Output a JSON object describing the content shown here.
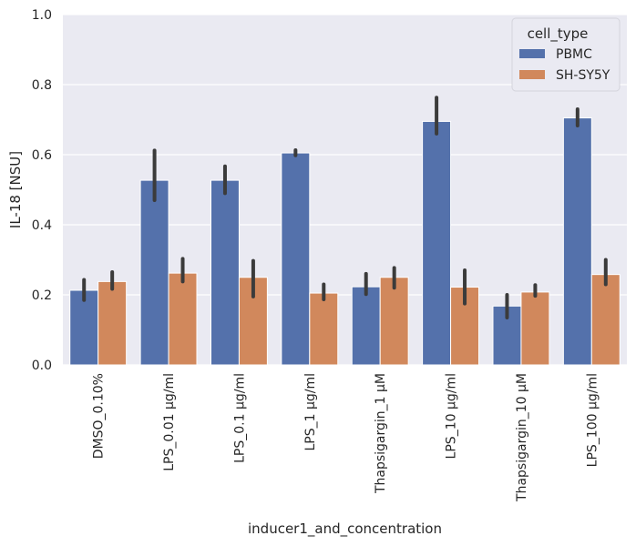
{
  "chart_data": {
    "type": "bar",
    "title": "",
    "xlabel": "inducer1_and_concentration",
    "ylabel": "IL-18 [NSU]",
    "ylim": [
      0,
      1.0
    ],
    "yticks": [
      "0.0",
      "0.2",
      "0.4",
      "0.6",
      "0.8",
      "1.0"
    ],
    "grid": true,
    "legend": {
      "title": "cell_type",
      "position": "top-right"
    },
    "categories": [
      "DMSO_0.10%",
      "LPS_0.01 μg/ml",
      "LPS_0.1 μg/ml",
      "LPS_1 μg/ml",
      "Thapsigargin_1 μM",
      "LPS_10 μg/ml",
      "Thapsigargin_10 μM",
      "LPS_100 μg/ml"
    ],
    "series": [
      {
        "name": "PBMC",
        "color": "#5471ab",
        "values": [
          0.213,
          0.527,
          0.527,
          0.605,
          0.223,
          0.695,
          0.168,
          0.705
        ],
        "error_low": [
          0.185,
          0.47,
          0.49,
          0.598,
          0.202,
          0.66,
          0.135,
          0.683
        ],
        "error_high": [
          0.243,
          0.612,
          0.567,
          0.613,
          0.26,
          0.763,
          0.2,
          0.73
        ]
      },
      {
        "name": "SH-SY5Y",
        "color": "#d1885c",
        "values": [
          0.238,
          0.262,
          0.25,
          0.205,
          0.25,
          0.222,
          0.208,
          0.258
        ],
        "error_low": [
          0.217,
          0.238,
          0.195,
          0.187,
          0.22,
          0.175,
          0.197,
          0.23
        ],
        "error_high": [
          0.265,
          0.303,
          0.297,
          0.23,
          0.277,
          0.27,
          0.228,
          0.3
        ]
      }
    ],
    "colors": {
      "plot_background": "#eaeaf2",
      "grid": "#ffffff",
      "error_bar": "#3b3b3b"
    }
  }
}
